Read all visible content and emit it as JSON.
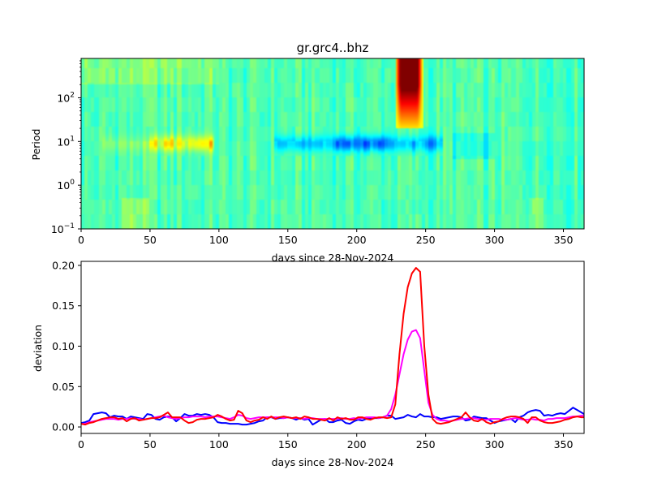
{
  "chart_data": [
    {
      "type": "heatmap",
      "title": "gr.grc4..bhz",
      "xlabel": "days since 28-Nov-2024",
      "ylabel": "Period",
      "xlim": [
        0,
        365
      ],
      "ylim_log10": [
        -1,
        2.9
      ],
      "xticks": [
        0,
        50,
        100,
        150,
        200,
        250,
        300,
        350
      ],
      "xtick_labels": [
        "0",
        "50",
        "100",
        "150",
        "200",
        "250",
        "300",
        "350"
      ],
      "yticks_log10": [
        -1,
        0,
        1,
        2
      ],
      "ytick_bases": [
        "10",
        "10",
        "10",
        "10"
      ],
      "ytick_exponents": [
        "−1",
        "0",
        "1",
        "2"
      ],
      "colormap": "jet",
      "features": [
        {
          "name": "high anomaly",
          "x_range": [
            229,
            247
          ],
          "period_range": [
            20,
            800
          ],
          "level": "very high"
        },
        {
          "name": "low band",
          "x_range": [
            140,
            260
          ],
          "period_range": [
            4,
            15
          ],
          "level": "low"
        },
        {
          "name": "elevated band",
          "x_range": [
            50,
            95
          ],
          "period_range": [
            5,
            20
          ],
          "level": "moderately high"
        }
      ]
    },
    {
      "type": "line",
      "xlabel": "days since 28-Nov-2024",
      "ylabel": "deviation",
      "xlim": [
        0,
        365
      ],
      "ylim": [
        -0.008,
        0.205
      ],
      "xticks": [
        0,
        50,
        100,
        150,
        200,
        250,
        300,
        350
      ],
      "xtick_labels": [
        "0",
        "50",
        "100",
        "150",
        "200",
        "250",
        "300",
        "350"
      ],
      "yticks": [
        0.0,
        0.05,
        0.1,
        0.15,
        0.2
      ],
      "ytick_labels": [
        "0.00",
        "0.05",
        "0.10",
        "0.15",
        "0.20"
      ],
      "series": [
        {
          "name": "blue",
          "color": "#0000ff",
          "x": [
            0,
            3,
            6,
            9,
            12,
            15,
            18,
            21,
            24,
            27,
            30,
            33,
            36,
            39,
            42,
            45,
            48,
            51,
            54,
            57,
            60,
            63,
            66,
            69,
            72,
            75,
            78,
            81,
            84,
            87,
            90,
            93,
            96,
            99,
            102,
            105,
            108,
            111,
            114,
            117,
            120,
            123,
            126,
            129,
            132,
            135,
            138,
            141,
            144,
            147,
            150,
            153,
            156,
            159,
            162,
            165,
            168,
            171,
            174,
            177,
            180,
            183,
            186,
            189,
            192,
            195,
            198,
            201,
            204,
            207,
            210,
            213,
            216,
            219,
            222,
            225,
            228,
            231,
            234,
            237,
            240,
            243,
            246,
            249,
            252,
            255,
            258,
            261,
            264,
            267,
            270,
            273,
            276,
            279,
            282,
            285,
            288,
            291,
            294,
            297,
            300,
            303,
            306,
            309,
            312,
            315,
            318,
            321,
            324,
            327,
            330,
            333,
            336,
            339,
            342,
            345,
            348,
            351,
            354,
            357,
            360,
            363,
            365
          ],
          "y": [
            0.005,
            0.006,
            0.008,
            0.016,
            0.017,
            0.018,
            0.017,
            0.012,
            0.014,
            0.013,
            0.013,
            0.01,
            0.013,
            0.012,
            0.011,
            0.01,
            0.016,
            0.015,
            0.01,
            0.009,
            0.012,
            0.013,
            0.012,
            0.007,
            0.011,
            0.016,
            0.014,
            0.014,
            0.016,
            0.015,
            0.016,
            0.015,
            0.012,
            0.006,
            0.005,
            0.005,
            0.004,
            0.004,
            0.004,
            0.003,
            0.003,
            0.004,
            0.005,
            0.007,
            0.008,
            0.012,
            0.012,
            0.01,
            0.011,
            0.011,
            0.012,
            0.011,
            0.009,
            0.011,
            0.009,
            0.01,
            0.003,
            0.006,
            0.009,
            0.01,
            0.006,
            0.006,
            0.008,
            0.009,
            0.005,
            0.004,
            0.007,
            0.009,
            0.008,
            0.01,
            0.011,
            0.011,
            0.011,
            0.012,
            0.014,
            0.014,
            0.01,
            0.011,
            0.012,
            0.015,
            0.013,
            0.012,
            0.016,
            0.013,
            0.013,
            0.012,
            0.012,
            0.01,
            0.011,
            0.012,
            0.013,
            0.013,
            0.012,
            0.008,
            0.009,
            0.013,
            0.012,
            0.011,
            0.011,
            0.008,
            0.005,
            0.007,
            0.008,
            0.009,
            0.01,
            0.006,
            0.012,
            0.014,
            0.018,
            0.02,
            0.021,
            0.02,
            0.014,
            0.015,
            0.014,
            0.016,
            0.017,
            0.016,
            0.02,
            0.024,
            0.021,
            0.018,
            0.016
          ]
        },
        {
          "name": "magenta",
          "color": "#ff00ff",
          "x": [
            0,
            3,
            6,
            9,
            12,
            15,
            18,
            21,
            24,
            27,
            30,
            33,
            36,
            39,
            42,
            45,
            48,
            51,
            54,
            57,
            60,
            63,
            66,
            69,
            72,
            75,
            78,
            81,
            84,
            87,
            90,
            93,
            96,
            99,
            102,
            105,
            108,
            111,
            114,
            117,
            120,
            123,
            126,
            129,
            132,
            135,
            138,
            141,
            144,
            147,
            150,
            153,
            156,
            159,
            162,
            165,
            168,
            171,
            174,
            177,
            180,
            183,
            186,
            189,
            192,
            195,
            198,
            201,
            204,
            207,
            210,
            213,
            216,
            219,
            222,
            225,
            228,
            231,
            234,
            237,
            240,
            243,
            246,
            249,
            252,
            255,
            258,
            261,
            264,
            267,
            270,
            273,
            276,
            279,
            282,
            285,
            288,
            291,
            294,
            297,
            300,
            303,
            306,
            309,
            312,
            315,
            318,
            321,
            324,
            327,
            330,
            333,
            336,
            339,
            342,
            345,
            348,
            351,
            354,
            357,
            360,
            363,
            365
          ],
          "y": [
            0.004,
            0.004,
            0.006,
            0.007,
            0.008,
            0.009,
            0.01,
            0.01,
            0.01,
            0.009,
            0.01,
            0.01,
            0.011,
            0.01,
            0.01,
            0.009,
            0.01,
            0.011,
            0.012,
            0.013,
            0.014,
            0.012,
            0.011,
            0.01,
            0.011,
            0.012,
            0.012,
            0.013,
            0.013,
            0.013,
            0.012,
            0.013,
            0.013,
            0.013,
            0.012,
            0.011,
            0.01,
            0.012,
            0.015,
            0.014,
            0.011,
            0.01,
            0.011,
            0.012,
            0.012,
            0.012,
            0.012,
            0.012,
            0.012,
            0.011,
            0.012,
            0.011,
            0.011,
            0.011,
            0.01,
            0.011,
            0.011,
            0.01,
            0.01,
            0.01,
            0.01,
            0.01,
            0.01,
            0.011,
            0.01,
            0.01,
            0.011,
            0.01,
            0.011,
            0.012,
            0.012,
            0.012,
            0.011,
            0.012,
            0.014,
            0.022,
            0.04,
            0.065,
            0.09,
            0.108,
            0.118,
            0.12,
            0.11,
            0.07,
            0.03,
            0.015,
            0.01,
            0.008,
            0.008,
            0.007,
            0.008,
            0.009,
            0.01,
            0.01,
            0.011,
            0.011,
            0.01,
            0.009,
            0.009,
            0.01,
            0.01,
            0.01,
            0.009,
            0.009,
            0.01,
            0.011,
            0.01,
            0.009,
            0.009,
            0.01,
            0.009,
            0.009,
            0.008,
            0.01,
            0.01,
            0.011,
            0.011,
            0.011,
            0.012,
            0.013,
            0.013,
            0.014,
            0.014
          ]
        },
        {
          "name": "red",
          "color": "#ff0000",
          "x": [
            0,
            3,
            6,
            9,
            12,
            15,
            18,
            21,
            24,
            27,
            30,
            33,
            36,
            39,
            42,
            45,
            48,
            51,
            54,
            57,
            60,
            63,
            66,
            69,
            72,
            75,
            78,
            81,
            84,
            87,
            90,
            93,
            96,
            99,
            102,
            105,
            108,
            111,
            114,
            117,
            120,
            123,
            126,
            129,
            132,
            135,
            138,
            141,
            144,
            147,
            150,
            153,
            156,
            159,
            162,
            165,
            168,
            171,
            174,
            177,
            180,
            183,
            186,
            189,
            192,
            195,
            198,
            201,
            204,
            207,
            210,
            213,
            216,
            219,
            222,
            225,
            228,
            231,
            234,
            237,
            240,
            243,
            246,
            249,
            252,
            255,
            258,
            261,
            264,
            267,
            270,
            273,
            276,
            279,
            282,
            285,
            288,
            291,
            294,
            297,
            300,
            303,
            306,
            309,
            312,
            315,
            318,
            321,
            324,
            327,
            330,
            333,
            336,
            339,
            342,
            345,
            348,
            351,
            354,
            357,
            360,
            363,
            365
          ],
          "y": [
            0.004,
            0.003,
            0.005,
            0.006,
            0.008,
            0.01,
            0.011,
            0.012,
            0.012,
            0.01,
            0.011,
            0.007,
            0.01,
            0.011,
            0.008,
            0.009,
            0.01,
            0.011,
            0.011,
            0.012,
            0.015,
            0.018,
            0.012,
            0.012,
            0.012,
            0.008,
            0.005,
            0.006,
            0.009,
            0.01,
            0.01,
            0.011,
            0.012,
            0.015,
            0.013,
            0.01,
            0.008,
            0.009,
            0.02,
            0.017,
            0.008,
            0.006,
            0.008,
            0.009,
            0.012,
            0.01,
            0.013,
            0.01,
            0.012,
            0.013,
            0.012,
            0.011,
            0.012,
            0.01,
            0.013,
            0.012,
            0.01,
            0.01,
            0.009,
            0.008,
            0.011,
            0.008,
            0.012,
            0.01,
            0.011,
            0.009,
            0.009,
            0.012,
            0.012,
            0.01,
            0.009,
            0.011,
            0.012,
            0.012,
            0.011,
            0.012,
            0.028,
            0.09,
            0.14,
            0.173,
            0.19,
            0.197,
            0.192,
            0.1,
            0.04,
            0.01,
            0.005,
            0.004,
            0.005,
            0.006,
            0.008,
            0.01,
            0.012,
            0.018,
            0.012,
            0.008,
            0.007,
            0.01,
            0.006,
            0.004,
            0.006,
            0.007,
            0.01,
            0.012,
            0.013,
            0.013,
            0.012,
            0.01,
            0.005,
            0.012,
            0.012,
            0.008,
            0.006,
            0.005,
            0.005,
            0.006,
            0.007,
            0.009,
            0.01,
            0.012,
            0.013,
            0.012,
            0.012
          ]
        }
      ]
    }
  ]
}
